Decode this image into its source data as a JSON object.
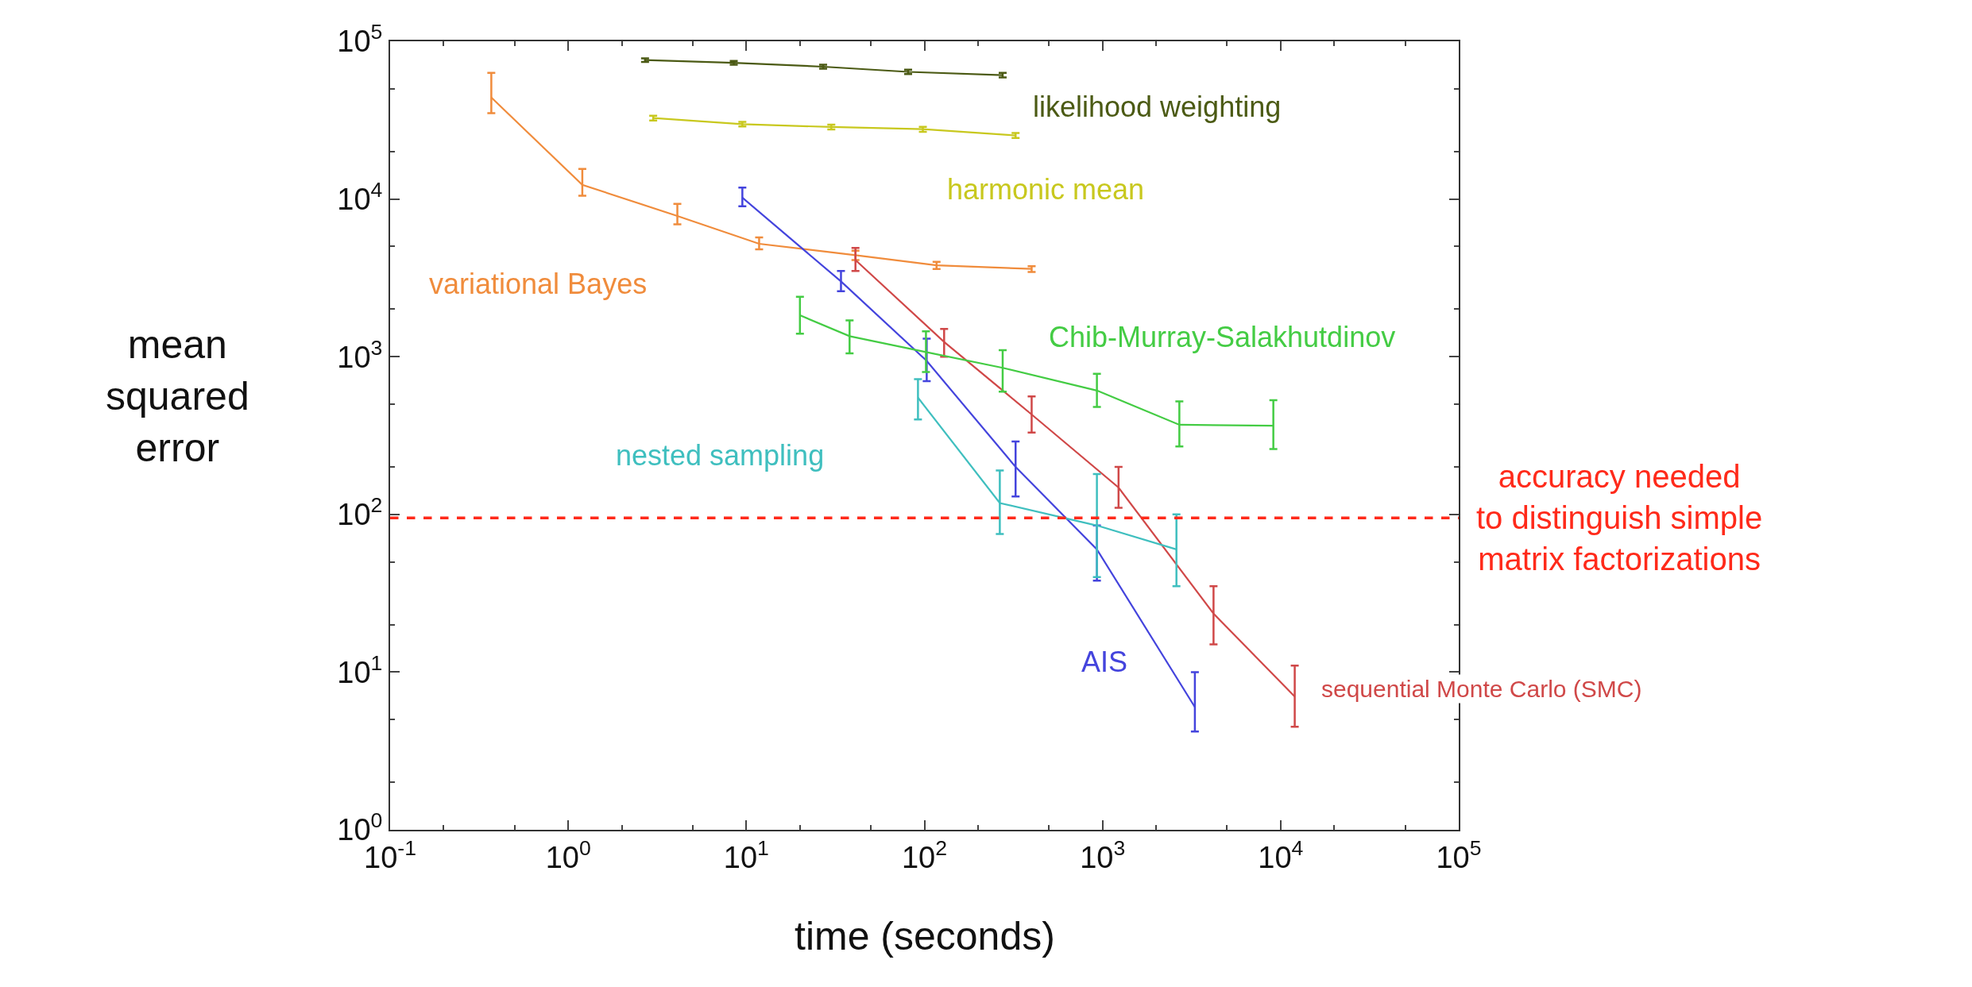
{
  "chart_data": {
    "type": "line",
    "xlabel": "time (seconds)",
    "ylabel": "mean\nsquared\nerror",
    "log": "xy",
    "legend": false,
    "xlim": [
      0.1,
      100000
    ],
    "ylim": [
      1,
      100000
    ],
    "xticks": [
      {
        "value": 0.1,
        "label": "10$^{-1}$"
      },
      {
        "value": 1,
        "label": "10$^{0}$"
      },
      {
        "value": 10,
        "label": "10$^{1}$"
      },
      {
        "value": 100,
        "label": "10$^{2}$"
      },
      {
        "value": 1000,
        "label": "10$^{3}$"
      },
      {
        "value": 10000,
        "label": "10$^{4}$"
      },
      {
        "value": 100000,
        "label": "10$^{5}$"
      }
    ],
    "yticks": [
      {
        "value": 1,
        "label": "10$^{0}$"
      },
      {
        "value": 10,
        "label": "10$^{1}$"
      },
      {
        "value": 100,
        "label": "10$^{2}$"
      },
      {
        "value": 1000,
        "label": "10$^{3}$"
      },
      {
        "value": 10000,
        "label": "10$^{4}$"
      },
      {
        "value": 100000,
        "label": "10$^{5}$"
      }
    ],
    "series": [
      {
        "name": "likelihood weighting",
        "color": "#4b5a14",
        "x": [
          2.7,
          8.5,
          27,
          81,
          275
        ],
        "values": [
          76000,
          73000,
          69000,
          64000,
          61000
        ],
        "errors": [
          [
            74000,
            78000
          ],
          [
            71000,
            75000
          ],
          [
            67000,
            71000
          ],
          [
            62000,
            66000
          ],
          [
            59000,
            63000
          ]
        ]
      },
      {
        "name": "harmonic mean",
        "color": "#c8c81e",
        "x": [
          3.0,
          9.5,
          30,
          98,
          325
        ],
        "values": [
          32600,
          29800,
          28600,
          27700,
          25300
        ],
        "errors": [
          [
            31500,
            33700
          ],
          [
            28800,
            30800
          ],
          [
            27600,
            29600
          ],
          [
            26700,
            28700
          ],
          [
            24400,
            26200
          ]
        ]
      },
      {
        "name": "variational Bayes",
        "color": "#f08c3c",
        "x": [
          0.37,
          1.2,
          4.1,
          11.8,
          41,
          117,
          400
        ],
        "values": [
          44000,
          12300,
          7800,
          5200,
          4400,
          3800,
          3600
        ],
        "errors": [
          [
            35000,
            63000
          ],
          [
            10500,
            15500
          ],
          [
            6900,
            9300
          ],
          [
            4800,
            5700
          ],
          [
            4100,
            4700
          ],
          [
            3600,
            4000
          ],
          [
            3450,
            3750
          ]
        ]
      },
      {
        "name": "AIS",
        "color": "#4444dd",
        "x": [
          9.5,
          34,
          103,
          325,
          930,
          3300
        ],
        "values": [
          10200,
          3000,
          940,
          200,
          60,
          6
        ],
        "errors": [
          [
            9000,
            11800
          ],
          [
            2600,
            3500
          ],
          [
            700,
            1300
          ],
          [
            130,
            290
          ],
          [
            38,
            85
          ],
          [
            4.2,
            10
          ]
        ]
      },
      {
        "name": "sequential Monte Carlo (SMC)",
        "color": "#d04848",
        "x": [
          41,
          129,
          400,
          1230,
          4200,
          12000
        ],
        "values": [
          4100,
          1240,
          430,
          148,
          23.5,
          7
        ],
        "errors": [
          [
            3500,
            4900
          ],
          [
            1000,
            1500
          ],
          [
            330,
            560
          ],
          [
            110,
            200
          ],
          [
            15,
            35
          ],
          [
            4.5,
            11
          ]
        ]
      },
      {
        "name": "Chib-Murray-Salakhutdinov",
        "color": "#44cc44",
        "x": [
          20,
          38,
          102,
          275,
          930,
          2700,
          9100
        ],
        "values": [
          1830,
          1350,
          1070,
          850,
          610,
          370,
          365
        ],
        "errors": [
          [
            1400,
            2400
          ],
          [
            1050,
            1700
          ],
          [
            800,
            1450
          ],
          [
            600,
            1100
          ],
          [
            480,
            780
          ],
          [
            270,
            520
          ],
          [
            260,
            530
          ]
        ]
      },
      {
        "name": "nested sampling",
        "color": "#3fbfbf",
        "x": [
          92,
          265,
          930,
          2600
        ],
        "values": [
          550,
          118,
          85,
          60
        ],
        "errors": [
          [
            400,
            720
          ],
          [
            75,
            190
          ],
          [
            40,
            180
          ],
          [
            35,
            100
          ]
        ]
      }
    ],
    "ref_lines": [
      {
        "axis": "y",
        "value": 95,
        "label": "accuracy needed\nto distinguish simple\nmatrix factorizations",
        "color": "#ff2a1a",
        "line_style": "dashed"
      }
    ]
  }
}
